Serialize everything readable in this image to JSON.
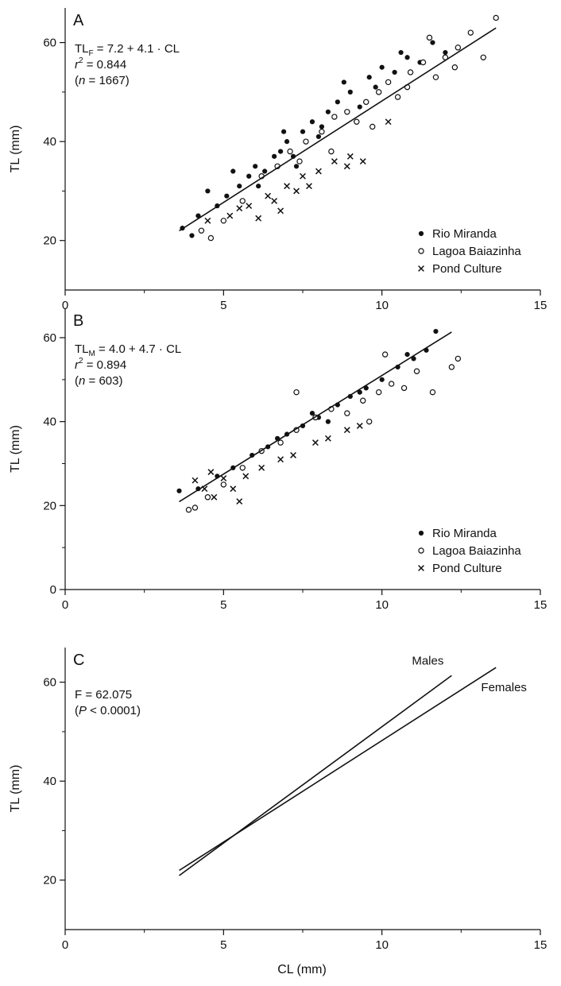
{
  "chart_data": [
    {
      "panel": "A",
      "type": "scatter",
      "xlabel": "",
      "ylabel": "TL (mm)",
      "xlim": [
        0,
        15
      ],
      "ylim": [
        10,
        67
      ],
      "xticks": [
        0,
        5,
        10,
        15
      ],
      "yticks": [
        20,
        40,
        60
      ],
      "grid": false,
      "legend_placement": "bottom-right",
      "annotations": {
        "line1": {
          "lead": "TL",
          "sub": "F",
          "rest": " = 7.2 + 4.1 · CL"
        },
        "line2": {
          "lead": "r",
          "sup": "2",
          "rest": " = 0.844"
        },
        "line3": {
          "open": "(",
          "lead": "n",
          "rest": " = 1667)"
        }
      },
      "regression": {
        "intercept": 7.2,
        "slope": 4.1,
        "x_range": [
          3.6,
          13.6
        ]
      },
      "series": [
        {
          "name": "Rio Miranda",
          "marker": "filled-circle",
          "color": "#111111",
          "points": [
            [
              3.7,
              22.5
            ],
            [
              4.2,
              25
            ],
            [
              4.8,
              27
            ],
            [
              5.1,
              29
            ],
            [
              5.5,
              31
            ],
            [
              5.8,
              33
            ],
            [
              6.0,
              35
            ],
            [
              6.3,
              34
            ],
            [
              6.6,
              37
            ],
            [
              6.8,
              38
            ],
            [
              7.0,
              40
            ],
            [
              7.2,
              37
            ],
            [
              7.5,
              42
            ],
            [
              7.8,
              44
            ],
            [
              8.0,
              41
            ],
            [
              8.3,
              46
            ],
            [
              8.6,
              48
            ],
            [
              9.0,
              50
            ],
            [
              9.3,
              47
            ],
            [
              9.6,
              53
            ],
            [
              10.0,
              55
            ],
            [
              10.4,
              54
            ],
            [
              10.8,
              57
            ],
            [
              11.2,
              56
            ],
            [
              11.6,
              60
            ],
            [
              12.0,
              58
            ],
            [
              4.0,
              21
            ],
            [
              4.5,
              30
            ],
            [
              5.3,
              34
            ],
            [
              6.1,
              31
            ],
            [
              6.9,
              42
            ],
            [
              7.3,
              35
            ],
            [
              8.1,
              43
            ],
            [
              8.8,
              52
            ],
            [
              9.8,
              51
            ],
            [
              10.6,
              58
            ]
          ]
        },
        {
          "name": "Lagoa Baiazinha",
          "marker": "open-circle",
          "color": "#111111",
          "points": [
            [
              4.3,
              22
            ],
            [
              4.6,
              20.5
            ],
            [
              5.0,
              24
            ],
            [
              5.6,
              28
            ],
            [
              6.2,
              33
            ],
            [
              6.7,
              35
            ],
            [
              7.1,
              38
            ],
            [
              7.6,
              40
            ],
            [
              8.1,
              42
            ],
            [
              8.5,
              45
            ],
            [
              8.9,
              46
            ],
            [
              9.2,
              44
            ],
            [
              9.5,
              48
            ],
            [
              9.9,
              50
            ],
            [
              10.2,
              52
            ],
            [
              10.5,
              49
            ],
            [
              10.9,
              54
            ],
            [
              11.3,
              56
            ],
            [
              11.7,
              53
            ],
            [
              12.0,
              57
            ],
            [
              12.4,
              59
            ],
            [
              12.8,
              62
            ],
            [
              13.2,
              57
            ],
            [
              13.6,
              65
            ],
            [
              11.5,
              61
            ],
            [
              12.3,
              55
            ],
            [
              9.7,
              43
            ],
            [
              10.8,
              51
            ],
            [
              8.4,
              38
            ],
            [
              7.4,
              36
            ]
          ]
        },
        {
          "name": "Pond Culture",
          "marker": "cross",
          "color": "#111111",
          "points": [
            [
              4.5,
              24
            ],
            [
              5.2,
              25
            ],
            [
              5.8,
              27
            ],
            [
              6.4,
              29
            ],
            [
              7.0,
              31
            ],
            [
              7.5,
              33
            ],
            [
              8.0,
              34
            ],
            [
              8.5,
              36
            ],
            [
              9.0,
              37
            ],
            [
              6.1,
              24.5
            ],
            [
              6.8,
              26
            ],
            [
              7.7,
              31
            ],
            [
              8.9,
              35
            ],
            [
              9.4,
              36
            ],
            [
              10.2,
              44
            ],
            [
              5.5,
              26.5
            ],
            [
              7.3,
              30
            ],
            [
              6.6,
              28
            ]
          ]
        }
      ]
    },
    {
      "panel": "B",
      "type": "scatter",
      "xlabel": "",
      "ylabel": "TL (mm)",
      "xlim": [
        0,
        15
      ],
      "ylim": [
        0,
        67
      ],
      "xticks": [
        0,
        5,
        10,
        15
      ],
      "yticks": [
        0,
        20,
        40,
        60
      ],
      "grid": false,
      "legend_placement": "bottom-right",
      "annotations": {
        "line1": {
          "lead": "TL",
          "sub": "M",
          "rest": " = 4.0 + 4.7 · CL"
        },
        "line2": {
          "lead": "r",
          "sup": "2",
          "rest": " = 0.894"
        },
        "line3": {
          "open": "(",
          "lead": "n",
          "rest": " = 603)"
        }
      },
      "regression": {
        "intercept": 4.0,
        "slope": 4.7,
        "x_range": [
          3.6,
          12.2
        ]
      },
      "series": [
        {
          "name": "Rio Miranda",
          "marker": "filled-circle",
          "color": "#111111",
          "points": [
            [
              3.6,
              23.5
            ],
            [
              4.2,
              24
            ],
            [
              4.8,
              27
            ],
            [
              5.3,
              29
            ],
            [
              5.9,
              32
            ],
            [
              6.4,
              34
            ],
            [
              7.0,
              37
            ],
            [
              7.5,
              39
            ],
            [
              8.0,
              41
            ],
            [
              8.6,
              44
            ],
            [
              9.0,
              46
            ],
            [
              9.5,
              48
            ],
            [
              10.0,
              50
            ],
            [
              10.5,
              53
            ],
            [
              11.0,
              55
            ],
            [
              11.4,
              57
            ],
            [
              11.7,
              61.5
            ],
            [
              6.7,
              36
            ],
            [
              7.8,
              42
            ],
            [
              8.3,
              40
            ],
            [
              9.3,
              47
            ],
            [
              10.8,
              56
            ]
          ]
        },
        {
          "name": "Lagoa Baiazinha",
          "marker": "open-circle",
          "color": "#111111",
          "points": [
            [
              3.9,
              19
            ],
            [
              4.1,
              19.5
            ],
            [
              4.5,
              22
            ],
            [
              5.0,
              25
            ],
            [
              5.6,
              29
            ],
            [
              6.2,
              33
            ],
            [
              6.8,
              35
            ],
            [
              7.3,
              38
            ],
            [
              7.9,
              41
            ],
            [
              8.4,
              43
            ],
            [
              8.9,
              42
            ],
            [
              9.4,
              45
            ],
            [
              9.9,
              47
            ],
            [
              10.3,
              49
            ],
            [
              10.7,
              48
            ],
            [
              11.1,
              52
            ],
            [
              11.6,
              47
            ],
            [
              12.2,
              53
            ],
            [
              12.4,
              55
            ],
            [
              10.1,
              56
            ],
            [
              9.6,
              40
            ],
            [
              7.3,
              47
            ]
          ]
        },
        {
          "name": "Pond Culture",
          "marker": "cross",
          "color": "#111111",
          "points": [
            [
              4.1,
              26
            ],
            [
              4.4,
              24
            ],
            [
              4.7,
              22
            ],
            [
              5.0,
              26.5
            ],
            [
              5.3,
              24
            ],
            [
              5.7,
              27
            ],
            [
              6.2,
              29
            ],
            [
              6.8,
              31
            ],
            [
              7.2,
              32
            ],
            [
              7.9,
              35
            ],
            [
              8.3,
              36
            ],
            [
              8.9,
              38
            ],
            [
              9.3,
              39
            ],
            [
              4.6,
              28
            ],
            [
              5.5,
              21
            ]
          ]
        }
      ]
    },
    {
      "panel": "C",
      "type": "line",
      "xlabel": "CL (mm)",
      "ylabel": "TL (mm)",
      "xlim": [
        0,
        15
      ],
      "ylim": [
        10,
        67
      ],
      "xticks": [
        0,
        5,
        10,
        15
      ],
      "yticks": [
        20,
        40,
        60
      ],
      "grid": false,
      "annotations": {
        "line1": {
          "lead": "F = 62.075",
          "rest": ""
        },
        "line2": {
          "open": "(",
          "lead": "P",
          "rest": " < 0.0001)"
        }
      },
      "series": [
        {
          "name": "Males",
          "intercept": 4.0,
          "slope": 4.7,
          "x_range": [
            3.6,
            12.2
          ]
        },
        {
          "name": "Females",
          "intercept": 7.2,
          "slope": 4.1,
          "x_range": [
            3.6,
            13.6
          ]
        }
      ]
    }
  ]
}
